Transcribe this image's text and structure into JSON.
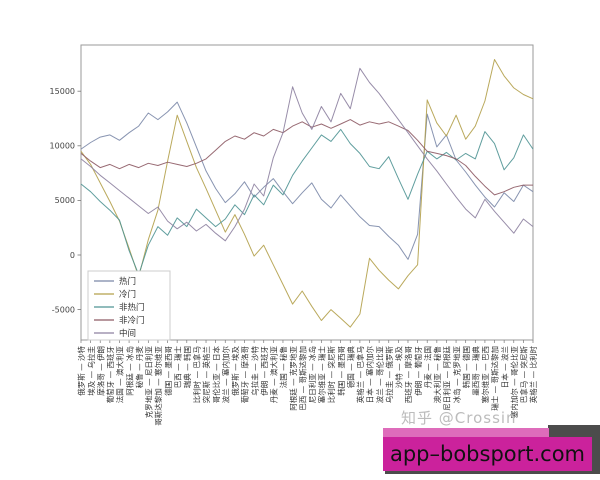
{
  "watermark": {
    "text": "知乎 @Crossin"
  },
  "banner": {
    "text": "app–bobsport.com",
    "bg_color": "#cb229c",
    "strip_color": "#de6cbb",
    "shadow_color": "#4c4c4c",
    "text_color": "#111111"
  },
  "chart_data": {
    "type": "line",
    "title": "",
    "xlabel": "",
    "ylabel": "",
    "grid": false,
    "legend_position": "center-left",
    "ylim": [
      -8000,
      19200
    ],
    "y_ticks": [
      -5000,
      0,
      5000,
      10000,
      15000
    ],
    "x_labels": [
      "俄罗斯 — 沙特",
      "埃及 — 乌拉圭",
      "摩洛哥 — 伊朗",
      "葡萄牙 — 西班牙",
      "法国 — 澳大利亚",
      "阿根廷 — 冰岛",
      "秘鲁 — 丹麦",
      "克罗地亚 — 尼日利亚",
      "哥斯达黎加 — 塞尔维亚",
      "德国 — 墨西哥",
      "巴西 — 瑞士",
      "瑞典 — 韩国",
      "比利时 — 巴拿马",
      "突尼斯 — 英格兰",
      "哥伦比亚 — 日本",
      "波兰 — 塞内加尔",
      "俄罗斯 — 埃及",
      "葡萄牙 — 摩洛哥",
      "乌拉圭 — 沙特",
      "伊朗 — 西班牙",
      "丹麦 — 澳大利亚",
      "法国 — 秘鲁",
      "阿根廷 — 克罗地亚",
      "巴西 — 哥斯达黎加",
      "尼日利亚 — 冰岛",
      "塞尔维亚 — 瑞士",
      "比利时 — 突尼斯",
      "韩国 — 墨西哥",
      "德国 — 瑞典",
      "英格兰 — 巴拿马",
      "日本 — 塞内加尔",
      "波兰 — 哥伦比亚",
      "乌拉圭 — 俄罗斯",
      "沙特 — 埃及",
      "西班牙 — 摩洛哥",
      "伊朗 — 葡萄牙",
      "丹麦 — 法国",
      "澳大利亚 — 秘鲁",
      "尼日利亚 — 阿根廷",
      "冰岛 — 克罗地亚",
      "韩国 — 德国",
      "墨西哥 — 瑞典",
      "塞尔维亚 — 巴西",
      "瑞士 — 哥斯达黎加",
      "日本 — 波兰",
      "塞内加尔 — 哥伦比亚",
      "巴拿马 — 突尼斯",
      "英格兰 — 比利时"
    ],
    "series": [
      {
        "name": "热门",
        "color": "#7b88a8",
        "values": [
          9700,
          10300,
          10800,
          11000,
          10500,
          11200,
          11800,
          13000,
          12400,
          13100,
          14000,
          12100,
          9900,
          7700,
          6100,
          4800,
          5600,
          6700,
          5300,
          6200,
          7000,
          5800,
          4700,
          5700,
          6600,
          5100,
          4300,
          5500,
          4500,
          3500,
          2700,
          2600,
          1700,
          900,
          -400,
          1900,
          12900,
          9900,
          11000,
          8700,
          7600,
          6400,
          5300,
          4400,
          5700,
          4900,
          6400,
          5800
        ]
      },
      {
        "name": "冷门",
        "color": "#b3a04a",
        "values": [
          9500,
          8300,
          6600,
          4900,
          3100,
          600,
          -2000,
          1400,
          4100,
          8600,
          12800,
          10400,
          8000,
          6100,
          4100,
          2100,
          3700,
          1900,
          -100,
          900,
          -900,
          -2700,
          -4500,
          -3300,
          -4700,
          -6000,
          -5000,
          -5800,
          -6600,
          -5400,
          -300,
          -1400,
          -2300,
          -3100,
          -1900,
          -900,
          14200,
          12100,
          10900,
          12800,
          10600,
          11800,
          14100,
          17900,
          16400,
          15300,
          14700,
          14300
        ]
      },
      {
        "name": "非热门",
        "color": "#4f9494",
        "values": [
          6500,
          5800,
          4900,
          4100,
          3200,
          400,
          -1800,
          900,
          2600,
          1800,
          3400,
          2600,
          4200,
          3400,
          2600,
          3300,
          4600,
          3700,
          5500,
          4600,
          6400,
          5500,
          7300,
          8600,
          9800,
          11000,
          10400,
          11500,
          10200,
          9300,
          8100,
          7900,
          9000,
          7000,
          5100,
          7400,
          9500,
          8800,
          9400,
          8700,
          9300,
          8800,
          11300,
          10200,
          7800,
          8900,
          11000,
          9700
        ]
      },
      {
        "name": "非冷门",
        "color": "#8d5a64",
        "values": [
          9300,
          8600,
          8000,
          8300,
          7900,
          8300,
          8000,
          8400,
          8200,
          8500,
          8300,
          8100,
          8400,
          8800,
          9600,
          10400,
          10900,
          10600,
          11200,
          10900,
          11500,
          11200,
          11800,
          12200,
          11700,
          12000,
          11600,
          12000,
          12400,
          11900,
          12200,
          12000,
          12200,
          11800,
          11400,
          10500,
          9500,
          9300,
          9100,
          8800,
          8200,
          7200,
          6300,
          5500,
          5800,
          6200,
          6400,
          6400
        ]
      },
      {
        "name": "中间",
        "color": "#8d81a0",
        "values": [
          8800,
          8100,
          7300,
          6600,
          5900,
          5200,
          4500,
          3800,
          4400,
          3100,
          2400,
          3000,
          2200,
          2800,
          2000,
          1300,
          2600,
          4200,
          6500,
          5400,
          8900,
          11200,
          15400,
          13000,
          11500,
          13600,
          12200,
          14800,
          13400,
          17100,
          15800,
          14800,
          13600,
          12400,
          11200,
          10000,
          8800,
          7700,
          6500,
          5300,
          4200,
          3400,
          5100,
          4000,
          3000,
          2000,
          3300,
          2600
        ]
      }
    ]
  }
}
